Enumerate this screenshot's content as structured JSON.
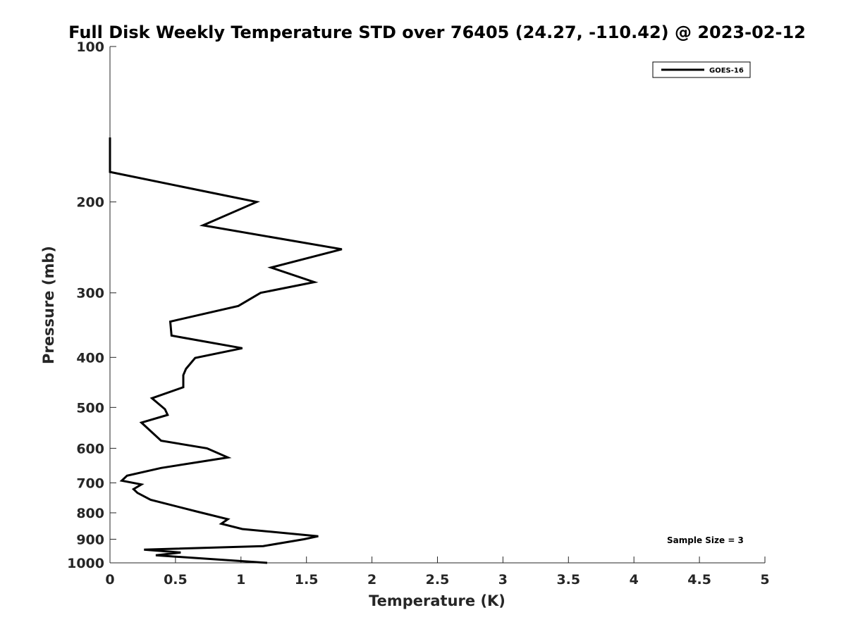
{
  "chart_data": {
    "type": "line",
    "title": "Full Disk Weekly Temperature STD over 76405 (24.27, -110.42) @ 2023-02-12",
    "xlabel": "Temperature (K)",
    "ylabel": "Pressure (mb)",
    "xlim": [
      0,
      5
    ],
    "ylim": [
      100,
      1000
    ],
    "yscale": "log",
    "y_reversed": true,
    "grid": false,
    "legend_position": "top-right",
    "xticks": [
      0,
      0.5,
      1,
      1.5,
      2,
      2.5,
      3,
      3.5,
      4,
      4.5,
      5
    ],
    "xtick_labels": [
      "0",
      "0.5",
      "1",
      "1.5",
      "2",
      "2.5",
      "3",
      "3.5",
      "4",
      "4.5",
      "5"
    ],
    "yticks": [
      100,
      200,
      300,
      400,
      500,
      600,
      700,
      800,
      900,
      1000
    ],
    "ytick_labels": [
      "100",
      "200",
      "300",
      "400",
      "500",
      "600",
      "700",
      "800",
      "900",
      "1000"
    ],
    "series": [
      {
        "name": "GOES-16",
        "color": "#000000",
        "points": [
          [
            0,
            150
          ],
          [
            0,
            175
          ],
          [
            1.12,
            200
          ],
          [
            0.71,
            222
          ],
          [
            1.77,
            247
          ],
          [
            1.23,
            268
          ],
          [
            1.56,
            286
          ],
          [
            1.15,
            300
          ],
          [
            0.98,
            318
          ],
          [
            0.46,
            341
          ],
          [
            0.47,
            363
          ],
          [
            1.01,
            384
          ],
          [
            0.65,
            401
          ],
          [
            0.58,
            421
          ],
          [
            0.56,
            433
          ],
          [
            0.56,
            457
          ],
          [
            0.32,
            480
          ],
          [
            0.42,
            504
          ],
          [
            0.44,
            517
          ],
          [
            0.24,
            535
          ],
          [
            0.39,
            580
          ],
          [
            0.74,
            600
          ],
          [
            0.9,
            625
          ],
          [
            0.39,
            655
          ],
          [
            0.13,
            678
          ],
          [
            0.09,
            693
          ],
          [
            0.24,
            705
          ],
          [
            0.18,
            720
          ],
          [
            0.21,
            732
          ],
          [
            0.31,
            755
          ],
          [
            0.66,
            795
          ],
          [
            0.9,
            823
          ],
          [
            0.85,
            840
          ],
          [
            1.01,
            860
          ],
          [
            1.59,
            888
          ],
          [
            1.48,
            900
          ],
          [
            1.17,
            928
          ],
          [
            0.26,
            943
          ],
          [
            0.54,
            955
          ],
          [
            0.35,
            967
          ],
          [
            1.2,
            1000
          ]
        ]
      }
    ],
    "annotations": [
      {
        "text": "Sample Size = 3",
        "position": "bottom-right"
      }
    ]
  }
}
